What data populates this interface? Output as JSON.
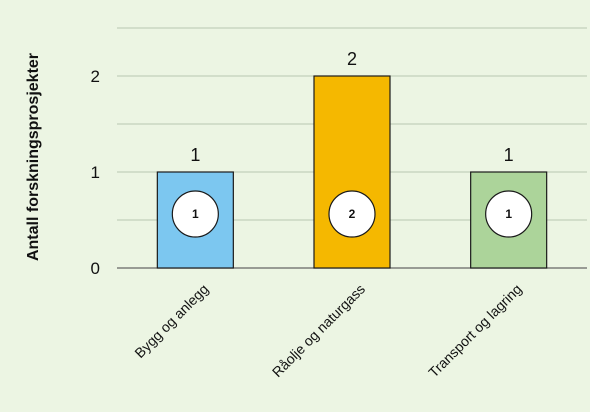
{
  "chart_data": {
    "type": "bar",
    "ylabel": "Antall forskningsprosjekter",
    "xlabel": "",
    "categories": [
      "Bygg og anlegg",
      "Råolje og naturgass",
      "Transport og lagring"
    ],
    "values": [
      1,
      2,
      1
    ],
    "circle_labels": [
      "1",
      "2",
      "1"
    ],
    "ylim": [
      0,
      2.5
    ],
    "yticks": [
      0,
      1,
      2
    ],
    "grid": true,
    "colors": [
      "#7cc7f0",
      "#f5b800",
      "#acd49a"
    ],
    "background": "#ecf5e3"
  }
}
